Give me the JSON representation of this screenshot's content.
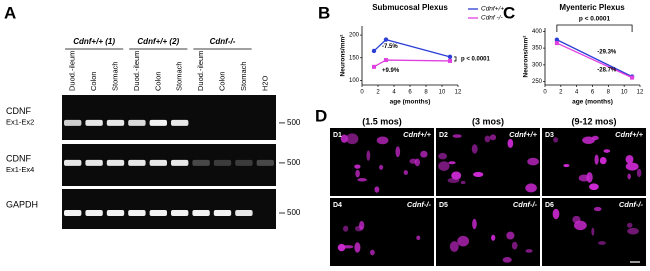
{
  "panel_a": {
    "letter": "A",
    "groups": [
      "Cdnf+/+ (1)",
      "Cdnf+/+ (2)",
      "Cdnf-/-"
    ],
    "lanes": [
      "Duod.-ileum",
      "Colon",
      "Stomach",
      "Duod.-ileum",
      "Colon",
      "Stomach",
      "Duod.-ileum",
      "Colon",
      "Stomach",
      "H2O"
    ],
    "rows": [
      [
        "CDNF",
        "Ex1-Ex2"
      ],
      [
        "CDNF",
        "Ex1-Ex4"
      ],
      [
        "GAPDH"
      ]
    ],
    "marker": "500"
  },
  "chart_data": [
    {
      "type": "line",
      "letter": "B",
      "title": "Submucosal Plexus",
      "y_label": "Neurons/mm²",
      "x_label": "age (months)",
      "x": [
        1.5,
        3,
        11
      ],
      "series": [
        {
          "name": "Cdnf+/+",
          "color": "#2b3fd6",
          "values": [
            165,
            190,
            152
          ]
        },
        {
          "name": "Cdnf -/-",
          "color": "#e040e0",
          "values": [
            130,
            145,
            143
          ]
        }
      ],
      "xlim": [
        0,
        12
      ],
      "xticks": [
        0,
        2,
        4,
        6,
        8,
        10,
        12
      ],
      "ylim": [
        90,
        220
      ],
      "yticks": [
        100,
        150,
        200
      ],
      "annotations": [
        "-7.5%",
        "+9.9%",
        "p < 0.0001"
      ]
    },
    {
      "type": "line",
      "letter": "C",
      "title": "Myenteric Plexus",
      "y_label": "Neurons/mm²",
      "x_label": "age (months)",
      "x": [
        1.5,
        11
      ],
      "series": [
        {
          "name": "Cdnf+/+",
          "color": "#2b3fd6",
          "values": [
            375,
            265
          ]
        },
        {
          "name": "Cdnf -/-",
          "color": "#e040e0",
          "values": [
            365,
            262
          ]
        }
      ],
      "xlim": [
        0,
        12
      ],
      "xticks": [
        0,
        2,
        4,
        6,
        8,
        10,
        12
      ],
      "ylim": [
        240,
        410
      ],
      "yticks": [
        250,
        300,
        350,
        400
      ],
      "annotations": [
        "-29.3%",
        "-28.7%",
        "p < 0.0001"
      ]
    }
  ],
  "panel_d": {
    "letter": "D",
    "ages": [
      "(1.5 mos)",
      "(3 mos)",
      "(9-12 mos)"
    ],
    "tiles": [
      [
        "D1",
        "Cdnf+/+"
      ],
      [
        "D2",
        "Cdnf+/+"
      ],
      [
        "D3",
        "Cdnf+/+"
      ],
      [
        "D4",
        "Cdnf-/-"
      ],
      [
        "D5",
        "Cdnf-/-"
      ],
      [
        "D6",
        "Cdnf-/-"
      ]
    ]
  }
}
